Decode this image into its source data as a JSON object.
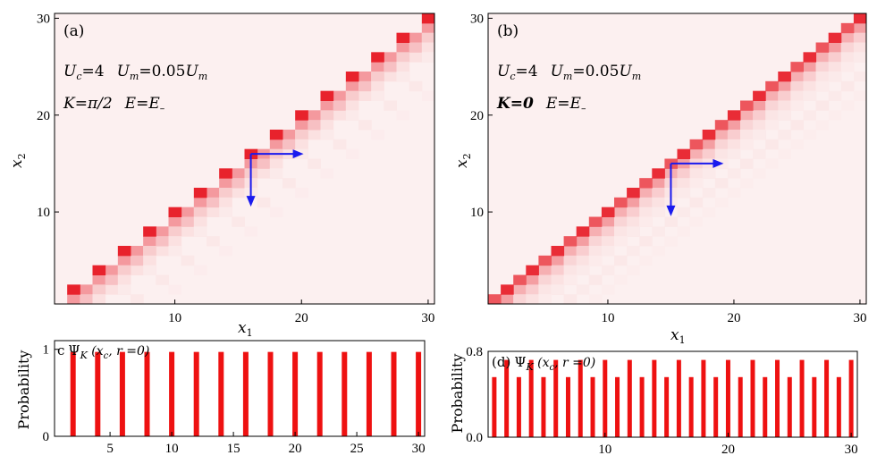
{
  "chart_data": [
    {
      "panel": "(a)",
      "type": "heatmap",
      "x_range": [
        1,
        30
      ],
      "y_range": [
        1,
        30
      ],
      "xlabel_var": "x",
      "xlabel_sub": "1",
      "ylabel_var": "x",
      "ylabel_sub": "2",
      "xticks": [
        10,
        20,
        30
      ],
      "yticks": [
        10,
        20,
        30
      ],
      "param_line1": "U_c=4   U_m=0.05U_m",
      "param_line2": "K=π/2   E=E_",
      "peak_cells": [
        [
          2,
          2
        ],
        [
          4,
          4
        ],
        [
          6,
          6
        ],
        [
          8,
          8
        ],
        [
          10,
          10
        ],
        [
          12,
          12
        ],
        [
          14,
          14
        ],
        [
          16,
          16
        ],
        [
          18,
          18
        ],
        [
          20,
          20
        ],
        [
          22,
          22
        ],
        [
          24,
          24
        ],
        [
          26,
          26
        ],
        [
          28,
          28
        ],
        [
          30,
          30
        ]
      ],
      "peak_intensity": 1.0,
      "spread": "decaying to lower-right of each peak",
      "arrows": [
        {
          "from": [
            16,
            16
          ],
          "direction": "right"
        },
        {
          "from": [
            16,
            16
          ],
          "direction": "down"
        }
      ]
    },
    {
      "panel": "(b)",
      "type": "heatmap",
      "x_range": [
        1,
        30
      ],
      "y_range": [
        1,
        30
      ],
      "xlabel_var": "x",
      "xlabel_sub": "1",
      "ylabel_var": "x",
      "ylabel_sub": "2",
      "xticks": [
        10,
        20,
        30
      ],
      "yticks": [
        10,
        20,
        30
      ],
      "param_line1": "U_c=4   U_m=0.05U_m",
      "param_line2": "K=0   E=E_",
      "peak_cells": [
        [
          1,
          1
        ],
        [
          2,
          2
        ],
        [
          3,
          3
        ],
        [
          4,
          4
        ],
        [
          5,
          5
        ],
        [
          6,
          6
        ],
        [
          7,
          7
        ],
        [
          8,
          8
        ],
        [
          9,
          9
        ],
        [
          10,
          10
        ],
        [
          11,
          11
        ],
        [
          12,
          12
        ],
        [
          13,
          13
        ],
        [
          14,
          14
        ],
        [
          15,
          15
        ],
        [
          16,
          16
        ],
        [
          17,
          17
        ],
        [
          18,
          18
        ],
        [
          19,
          19
        ],
        [
          20,
          20
        ],
        [
          21,
          21
        ],
        [
          22,
          22
        ],
        [
          23,
          23
        ],
        [
          24,
          24
        ],
        [
          25,
          25
        ],
        [
          26,
          26
        ],
        [
          27,
          27
        ],
        [
          28,
          28
        ],
        [
          29,
          29
        ],
        [
          30,
          30
        ]
      ],
      "peak_intensity_odd": 0.75,
      "peak_intensity_even": 0.95,
      "spread": "decaying to lower-right of each peak",
      "arrows": [
        {
          "from": [
            15,
            15
          ],
          "direction": "right"
        },
        {
          "from": [
            15,
            15
          ],
          "direction": "down"
        }
      ]
    },
    {
      "panel": "(c)",
      "type": "bar",
      "title": "Ψ_K (x_c, r=0)",
      "ylabel": "Probability",
      "x_range": [
        1,
        30
      ],
      "y_range": [
        0,
        1.1
      ],
      "xticks": [
        5,
        10,
        15,
        20,
        25,
        30
      ],
      "yticks": [
        0,
        1
      ],
      "x": [
        2,
        4,
        6,
        8,
        10,
        12,
        14,
        16,
        18,
        20,
        22,
        24,
        26,
        28,
        30
      ],
      "values": [
        0.97,
        0.97,
        0.97,
        0.97,
        0.97,
        0.97,
        0.97,
        0.97,
        0.97,
        0.97,
        0.97,
        0.97,
        0.97,
        0.97,
        0.97
      ],
      "color": "#ee1111"
    },
    {
      "panel": "(d)",
      "type": "bar",
      "title": "Ψ_K (x_c, r=0)",
      "ylabel": "Probability",
      "x_range": [
        1,
        30
      ],
      "y_range": [
        0,
        0.8
      ],
      "xticks": [
        10,
        20,
        30
      ],
      "yticks": [
        "0.0",
        "0.8"
      ],
      "x": [
        1,
        2,
        3,
        4,
        5,
        6,
        7,
        8,
        9,
        10,
        11,
        12,
        13,
        14,
        15,
        16,
        17,
        18,
        19,
        20,
        21,
        22,
        23,
        24,
        25,
        26,
        27,
        28,
        29,
        30
      ],
      "values": [
        0.56,
        0.72,
        0.56,
        0.72,
        0.56,
        0.72,
        0.56,
        0.72,
        0.56,
        0.72,
        0.56,
        0.72,
        0.56,
        0.72,
        0.56,
        0.72,
        0.56,
        0.72,
        0.56,
        0.72,
        0.56,
        0.72,
        0.56,
        0.72,
        0.56,
        0.72,
        0.56,
        0.72,
        0.56,
        0.72
      ],
      "color": "#ee1111"
    }
  ],
  "labels": {
    "a": "(a)",
    "b": "(b)",
    "c": "c",
    "d": "(d)",
    "probability": "Probability",
    "psi": "Ψ",
    "K": "K",
    "xc_open": " (x",
    "xc_sub": "c",
    "r_part": ", r =0)",
    "xvar": "x",
    "sub1": "1",
    "sub2": "2",
    "Uc": "U",
    "eq4": "=4",
    "Um": "U",
    "m": "m",
    "eq005": "=0.05",
    "Kpi": "K=π/2",
    "K0": "K=0",
    "E": "E=E",
    "minus": "–"
  },
  "colors": {
    "peak": "#e8222c",
    "background": "#fcf0f0",
    "bar": "#ee1111",
    "arrow": "#1a1aee"
  }
}
